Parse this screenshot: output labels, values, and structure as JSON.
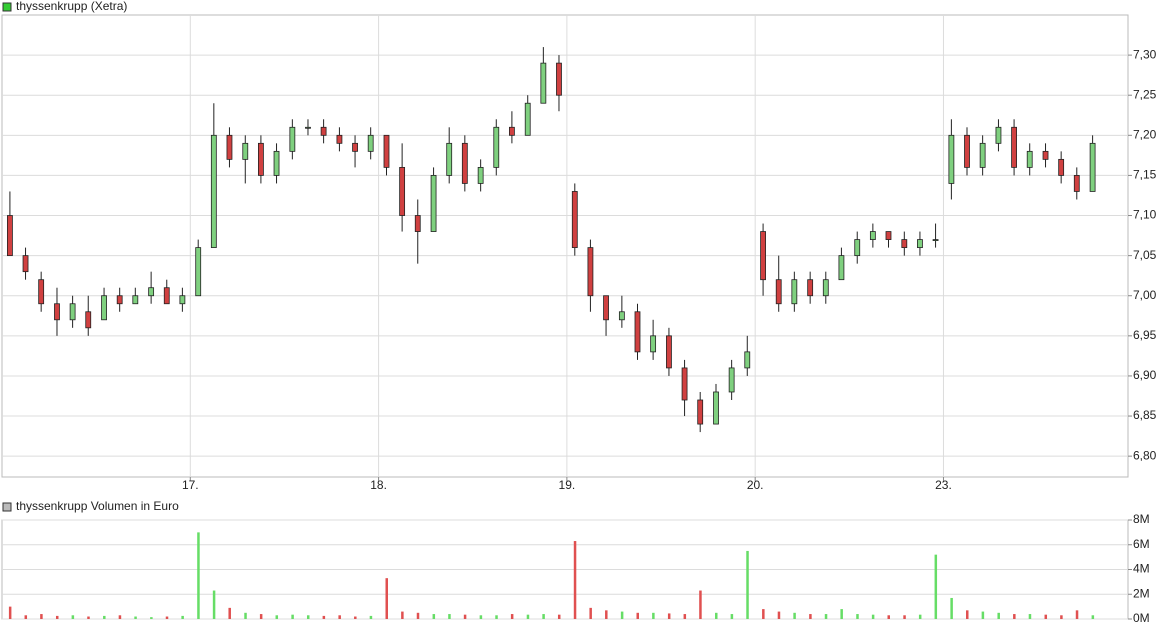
{
  "chart_data": [
    {
      "type": "candlestick",
      "title": "thyssenkrupp (Xetra)",
      "legend_color": "#33cc33",
      "up_color": "#7fd07f",
      "down_color": "#d04040",
      "x": [
        0.042,
        0.125,
        0.208,
        0.292,
        0.375,
        0.458,
        0.542,
        0.625,
        0.708,
        0.792,
        0.875,
        0.958,
        1.042,
        1.125,
        1.208,
        1.292,
        1.375,
        1.458,
        1.542,
        1.625,
        1.708,
        1.792,
        1.875,
        1.958,
        2.042,
        2.125,
        2.208,
        2.292,
        2.375,
        2.458,
        2.542,
        2.625,
        2.708,
        2.792,
        2.875,
        2.958,
        3.042,
        3.125,
        3.208,
        3.292,
        3.375,
        3.458,
        3.542,
        3.625,
        3.708,
        3.792,
        3.875,
        3.958,
        4.042,
        4.125,
        4.208,
        4.292,
        4.375,
        4.458,
        4.542,
        4.625,
        4.708,
        4.792,
        4.875,
        4.958,
        5.042,
        5.125,
        5.208,
        5.292,
        5.375,
        5.458,
        5.542,
        5.625,
        5.708,
        5.792
      ],
      "open": [
        7.1,
        7.05,
        7.02,
        6.99,
        6.97,
        6.98,
        6.97,
        7.0,
        6.99,
        7.0,
        7.01,
        6.99,
        7.0,
        7.06,
        7.2,
        7.17,
        7.19,
        7.15,
        7.18,
        7.21,
        7.21,
        7.2,
        7.19,
        7.18,
        7.2,
        7.16,
        7.1,
        7.08,
        7.15,
        7.19,
        7.14,
        7.16,
        7.21,
        7.2,
        7.24,
        7.29,
        7.13,
        7.06,
        7.0,
        6.97,
        6.98,
        6.93,
        6.95,
        6.91,
        6.87,
        6.84,
        6.88,
        6.91,
        7.08,
        7.02,
        6.99,
        7.02,
        7.0,
        7.02,
        7.05,
        7.07,
        7.08,
        7.07,
        7.06,
        7.07,
        7.14,
        7.2,
        7.16,
        7.19,
        7.21,
        7.16,
        7.18,
        7.17,
        7.15,
        7.13
      ],
      "high": [
        7.13,
        7.06,
        7.03,
        7.01,
        7.0,
        7.0,
        7.01,
        7.01,
        7.01,
        7.03,
        7.02,
        7.01,
        7.07,
        7.24,
        7.21,
        7.2,
        7.2,
        7.19,
        7.22,
        7.22,
        7.22,
        7.21,
        7.2,
        7.21,
        7.2,
        7.19,
        7.12,
        7.16,
        7.21,
        7.2,
        7.17,
        7.22,
        7.23,
        7.25,
        7.31,
        7.3,
        7.14,
        7.07,
        7.0,
        7.0,
        6.99,
        6.97,
        6.96,
        6.92,
        6.88,
        6.89,
        6.92,
        6.95,
        7.09,
        7.05,
        7.03,
        7.03,
        7.03,
        7.06,
        7.08,
        7.09,
        7.08,
        7.08,
        7.08,
        7.09,
        7.22,
        7.21,
        7.2,
        7.22,
        7.22,
        7.19,
        7.19,
        7.18,
        7.16,
        7.2
      ],
      "low": [
        7.05,
        7.02,
        6.98,
        6.95,
        6.96,
        6.95,
        6.97,
        6.98,
        6.99,
        6.99,
        6.99,
        6.98,
        7.0,
        7.06,
        7.16,
        7.14,
        7.14,
        7.14,
        7.17,
        7.2,
        7.19,
        7.18,
        7.16,
        7.17,
        7.15,
        7.08,
        7.04,
        7.08,
        7.14,
        7.13,
        7.13,
        7.15,
        7.19,
        7.2,
        7.24,
        7.23,
        7.05,
        6.98,
        6.95,
        6.96,
        6.92,
        6.92,
        6.9,
        6.85,
        6.83,
        6.84,
        6.87,
        6.9,
        7.0,
        6.98,
        6.98,
        6.99,
        6.99,
        7.02,
        7.04,
        7.06,
        7.06,
        7.05,
        7.05,
        7.06,
        7.12,
        7.15,
        7.15,
        7.18,
        7.15,
        7.15,
        7.16,
        7.14,
        7.12,
        7.13
      ],
      "close": [
        7.05,
        7.03,
        6.99,
        6.97,
        6.99,
        6.96,
        7.0,
        6.99,
        7.0,
        7.01,
        6.99,
        7.0,
        7.06,
        7.2,
        7.17,
        7.19,
        7.15,
        7.18,
        7.21,
        7.21,
        7.2,
        7.19,
        7.18,
        7.2,
        7.16,
        7.1,
        7.08,
        7.15,
        7.19,
        7.14,
        7.16,
        7.21,
        7.2,
        7.24,
        7.29,
        7.25,
        7.06,
        7.0,
        6.97,
        6.98,
        6.93,
        6.95,
        6.91,
        6.87,
        6.84,
        6.88,
        6.91,
        6.93,
        7.02,
        6.99,
        7.02,
        7.0,
        7.02,
        7.05,
        7.07,
        7.08,
        7.07,
        7.06,
        7.07,
        7.07,
        7.2,
        7.16,
        7.19,
        7.21,
        7.16,
        7.18,
        7.17,
        7.15,
        7.13,
        7.19
      ],
      "xlim": [
        0,
        5.98
      ],
      "xticks": [
        {
          "value": 1,
          "label": "17."
        },
        {
          "value": 2,
          "label": "18."
        },
        {
          "value": 3,
          "label": "19."
        },
        {
          "value": 4,
          "label": "20."
        },
        {
          "value": 5,
          "label": "23."
        }
      ],
      "ylim": [
        6.774,
        7.35
      ],
      "yticks": [
        {
          "value": 6.8,
          "label": "6,80"
        },
        {
          "value": 6.85,
          "label": "6,85"
        },
        {
          "value": 6.9,
          "label": "6,90"
        },
        {
          "value": 6.95,
          "label": "6,95"
        },
        {
          "value": 7.0,
          "label": "7,00"
        },
        {
          "value": 7.05,
          "label": "7,05"
        },
        {
          "value": 7.1,
          "label": "7,10"
        },
        {
          "value": 7.15,
          "label": "7,15"
        },
        {
          "value": 7.2,
          "label": "7,20"
        },
        {
          "value": 7.25,
          "label": "7,25"
        },
        {
          "value": 7.3,
          "label": "7,30"
        }
      ],
      "grid": true
    },
    {
      "type": "bar",
      "title": "thyssenkrupp Volumen in Euro",
      "legend_color": "#bbbbbb",
      "up_color": "#66dd66",
      "down_color": "#e05050",
      "x": [
        0.042,
        0.125,
        0.208,
        0.292,
        0.375,
        0.458,
        0.542,
        0.625,
        0.708,
        0.792,
        0.875,
        0.958,
        1.042,
        1.125,
        1.208,
        1.292,
        1.375,
        1.458,
        1.542,
        1.625,
        1.708,
        1.792,
        1.875,
        1.958,
        2.042,
        2.125,
        2.208,
        2.292,
        2.375,
        2.458,
        2.542,
        2.625,
        2.708,
        2.792,
        2.875,
        2.958,
        3.042,
        3.125,
        3.208,
        3.292,
        3.375,
        3.458,
        3.542,
        3.625,
        3.708,
        3.792,
        3.875,
        3.958,
        4.042,
        4.125,
        4.208,
        4.292,
        4.375,
        4.458,
        4.542,
        4.625,
        4.708,
        4.792,
        4.875,
        4.958,
        5.042,
        5.125,
        5.208,
        5.292,
        5.375,
        5.458,
        5.542,
        5.625,
        5.708,
        5.792
      ],
      "values": [
        1000000,
        300000,
        400000,
        250000,
        300000,
        200000,
        250000,
        300000,
        200000,
        150000,
        200000,
        250000,
        7000000,
        2300000,
        900000,
        500000,
        400000,
        300000,
        350000,
        300000,
        250000,
        300000,
        200000,
        250000,
        3300000,
        600000,
        500000,
        400000,
        400000,
        350000,
        300000,
        300000,
        400000,
        350000,
        400000,
        350000,
        6300000,
        900000,
        700000,
        600000,
        500000,
        500000,
        450000,
        400000,
        2300000,
        500000,
        400000,
        5500000,
        800000,
        600000,
        500000,
        400000,
        400000,
        800000,
        400000,
        350000,
        300000,
        300000,
        350000,
        5200000,
        1700000,
        700000,
        600000,
        500000,
        400000,
        400000,
        350000,
        300000,
        700000,
        300000
      ],
      "xlim": [
        0,
        5.98
      ],
      "ylim": [
        0,
        8000000
      ],
      "yticks": [
        {
          "value": 0,
          "label": "0M"
        },
        {
          "value": 2000000,
          "label": "2M"
        },
        {
          "value": 4000000,
          "label": "4M"
        },
        {
          "value": 6000000,
          "label": "6M"
        },
        {
          "value": 8000000,
          "label": "8M"
        }
      ],
      "grid": true
    }
  ]
}
